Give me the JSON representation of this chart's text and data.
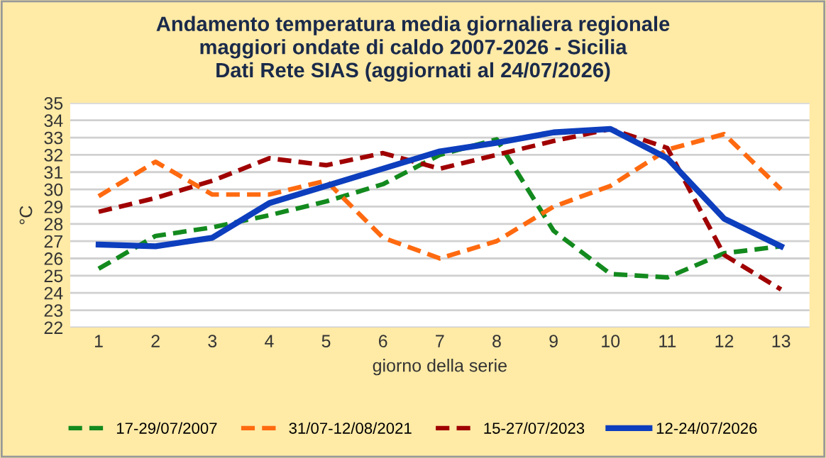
{
  "chart_data": {
    "type": "line",
    "title": "Andamento temperatura media giornaliera regionale\nmaggiori ondate di caldo 2007-2026 - Sicilia\nDati Rete SIAS (aggiornati al 24/07/2026)",
    "xlabel": "giorno della serie",
    "ylabel": "°C",
    "categories": [
      "1",
      "2",
      "3",
      "4",
      "5",
      "6",
      "7",
      "8",
      "9",
      "10",
      "11",
      "12",
      "13"
    ],
    "series": [
      {
        "name": "17-29/07/2007",
        "color": "#138a1e",
        "line_style": "dashed",
        "values": [
          25.4,
          27.3,
          27.8,
          28.5,
          29.3,
          30.3,
          32.0,
          32.9,
          27.6,
          25.1,
          24.9,
          26.3,
          26.7
        ]
      },
      {
        "name": "31/07-12/08/2021",
        "color": "#ff6a10",
        "line_style": "dashed",
        "values": [
          29.6,
          31.6,
          29.7,
          29.7,
          30.5,
          27.2,
          26.0,
          27.0,
          29.0,
          30.2,
          32.3,
          33.2,
          30.0
        ]
      },
      {
        "name": "15-27/07/2023",
        "color": "#a00000",
        "line_style": "dashed",
        "values": [
          28.7,
          29.5,
          30.5,
          31.8,
          31.4,
          32.1,
          31.2,
          32.0,
          32.8,
          33.5,
          32.4,
          26.2,
          24.2
        ]
      },
      {
        "name": "12-24/07/2026",
        "color": "#0d3ebd",
        "line_style": "solid",
        "values": [
          26.8,
          26.7,
          27.2,
          29.2,
          30.2,
          31.2,
          32.2,
          32.7,
          33.3,
          33.5,
          31.8,
          28.3,
          26.7
        ]
      }
    ],
    "ylim": [
      22,
      35
    ],
    "yticks": [
      22,
      23,
      24,
      25,
      26,
      27,
      28,
      29,
      30,
      31,
      32,
      33,
      34,
      35
    ],
    "grid": "y",
    "legend": "bottom",
    "marker": "none"
  }
}
